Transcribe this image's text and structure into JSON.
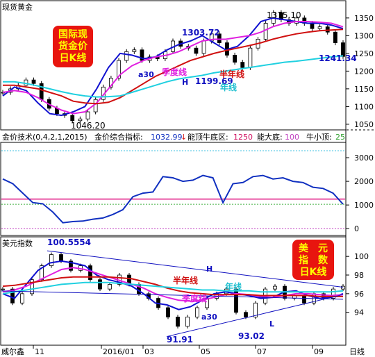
{
  "window": {
    "title": "现货黄金",
    "brand": "威尔鑫",
    "period_label": "日线"
  },
  "gold_panel": {
    "badge_lines": [
      "国际现",
      "货金价",
      "日K线"
    ],
    "badge_color": "#e8150f",
    "badge_text_color": "#ffff00",
    "annotations": {
      "high_1303": "1303.72",
      "high_1375": "1375.10",
      "low_1046": "1046.20",
      "low_1199": "1199.69",
      "last_1241": "1241.34",
      "season_line": "季度线",
      "half_year_line": "半年线",
      "year_line": "年线",
      "a30": "a30",
      "H": "H"
    }
  },
  "indicator_header": {
    "name": "金价技术(0,4,2,1,2015)",
    "index_label": "金价综合指标:",
    "index_value": "1032.99",
    "arrow": "↓",
    "top_bottom_label": "能顶牛底区:",
    "top_bottom_value": "1250",
    "big_bottom_label": "能大底:",
    "big_bottom_value": "100",
    "small_top_label": "牛小顶:",
    "small_top_value": "25"
  },
  "usd_panel": {
    "title": "美元指数",
    "badge_lines": [
      "美　元",
      "指　数",
      "日K线"
    ],
    "badge_color": "#e8150f",
    "badge_text_color": "#ffff00",
    "annotations": {
      "high_100": "100.5554",
      "low_91": "91.91",
      "low_93": "93.02",
      "season_line": "季度线",
      "half_year_line": "半年线",
      "year_line": "年线",
      "a30": "a30",
      "H": "H",
      "L": "L"
    }
  },
  "colors": {
    "candle": "#000000",
    "ma30": "#1010d0",
    "season": "#e020e0",
    "half_year": "#d01010",
    "year": "#20d0e0",
    "indicator": "#1030c0",
    "ref_line": "#e01080",
    "green_dash": "#40b040",
    "cyan_dash": "#40c0e0",
    "purple_dash": "#c040c0"
  },
  "chart_data": [
    {
      "type": "line",
      "title": "现货黄金",
      "x_ticks": [
        "11",
        "2016/01",
        "03",
        "05",
        "07",
        "09"
      ],
      "y_ticks": [
        1050,
        1100,
        1150,
        1200,
        1250,
        1300,
        1350
      ],
      "ylim": [
        1040,
        1385
      ],
      "series": [
        {
          "name": "a30",
          "values": [
            1130,
            1155,
            1145,
            1110,
            1080,
            1075,
            1085,
            1100,
            1150,
            1210,
            1250,
            1245,
            1235,
            1240,
            1260,
            1275,
            1285,
            1300,
            1280,
            1260,
            1270,
            1300,
            1340,
            1350,
            1345,
            1340,
            1335,
            1335,
            1330,
            1320
          ]
        },
        {
          "name": "季度线",
          "values": [
            1140,
            1145,
            1140,
            1125,
            1105,
            1090,
            1080,
            1085,
            1110,
            1150,
            1190,
            1215,
            1230,
            1240,
            1245,
            1255,
            1270,
            1285,
            1290,
            1290,
            1295,
            1300,
            1310,
            1325,
            1335,
            1340,
            1340,
            1338,
            1335,
            1325
          ]
        },
        {
          "name": "半年线",
          "values": [
            1160,
            1160,
            1155,
            1150,
            1140,
            1130,
            1115,
            1110,
            1108,
            1112,
            1125,
            1145,
            1165,
            1185,
            1200,
            1215,
            1230,
            1240,
            1250,
            1258,
            1265,
            1272,
            1280,
            1290,
            1298,
            1305,
            1310,
            1314,
            1316,
            1318
          ]
        },
        {
          "name": "年线",
          "values": [
            1170,
            1170,
            1165,
            1158,
            1150,
            1142,
            1135,
            1130,
            1127,
            1128,
            1130,
            1140,
            1150,
            1160,
            1170,
            1178,
            1183,
            1188,
            1195,
            1200,
            1205,
            1210,
            1215,
            1220,
            1225,
            1228,
            1232,
            1236,
            1240,
            1243
          ]
        }
      ],
      "candles_close": [
        1140,
        1150,
        1160,
        1175,
        1165,
        1120,
        1095,
        1080,
        1075,
        1060,
        1065,
        1085,
        1120,
        1155,
        1180,
        1230,
        1255,
        1260,
        1230,
        1240,
        1235,
        1255,
        1285,
        1270,
        1265,
        1250,
        1285,
        1305,
        1280,
        1245,
        1225,
        1210,
        1265,
        1290,
        1335,
        1365,
        1345,
        1335,
        1350,
        1335,
        1320,
        1325,
        1310,
        1280,
        1241.34
      ]
    },
    {
      "type": "line",
      "title": "金价技术(0,4,2,1,2015)",
      "y_ticks": [
        0,
        1000,
        2000,
        3000
      ],
      "ylim": [
        -200,
        3500
      ],
      "reference_lines": [
        1250,
        100,
        25
      ],
      "series": [
        {
          "name": "金价综合指标",
          "values": [
            2100,
            1900,
            1500,
            1100,
            1050,
            700,
            250,
            300,
            320,
            400,
            450,
            600,
            800,
            1350,
            1500,
            1550,
            2200,
            2150,
            2000,
            2050,
            2250,
            2150,
            1100,
            1900,
            1950,
            2200,
            2250,
            2100,
            2150,
            2000,
            1950,
            1750,
            1700,
            1500,
            1032.99
          ]
        }
      ]
    },
    {
      "type": "line",
      "title": "美元指数",
      "x_ticks": [
        "11",
        "2016/01",
        "03",
        "05",
        "07",
        "09"
      ],
      "y_ticks": [
        94,
        96,
        98,
        100
      ],
      "ylim": [
        90.7,
        101.8
      ],
      "series": [
        {
          "name": "a30",
          "values": [
            96,
            95.5,
            97,
            98.5,
            99.3,
            99.5,
            99.3,
            99,
            98,
            97.5,
            97.2,
            96.8,
            96,
            95,
            94.8,
            94.3,
            94.6,
            95.3,
            96,
            96.2,
            96,
            95.8,
            95.5,
            95.6,
            96.2,
            96.3,
            95.8,
            95.5,
            95.6,
            96
          ]
        },
        {
          "name": "季度线",
          "values": [
            96.2,
            96.4,
            96.8,
            97.4,
            98,
            98.6,
            98.8,
            98.6,
            98.2,
            97.8,
            97.4,
            97,
            96.6,
            96,
            95.6,
            95.3,
            95.2,
            95.3,
            95.6,
            95.9,
            96,
            95.9,
            95.7,
            95.6,
            95.8,
            96,
            96,
            95.9,
            95.8,
            95.9
          ]
        },
        {
          "name": "半年线",
          "values": [
            96.8,
            96.9,
            97.1,
            97.3,
            97.5,
            97.7,
            97.8,
            97.8,
            97.8,
            97.8,
            97.7,
            97.6,
            97.3,
            97,
            96.6,
            96.3,
            96.1,
            96,
            95.9,
            95.9,
            95.9,
            95.9,
            95.8,
            95.8,
            95.8,
            95.8,
            95.8,
            95.7,
            95.7,
            95.7
          ]
        },
        {
          "name": "年线",
          "values": [
            96,
            96.2,
            96.4,
            96.6,
            96.8,
            97,
            97.1,
            97.2,
            97.2,
            97.2,
            97.1,
            97,
            96.9,
            96.8,
            96.7,
            96.6,
            96.5,
            96.4,
            96.4,
            96.3,
            96.3,
            96.3,
            96.2,
            96.2,
            96.2,
            96.2,
            96.2,
            96.2,
            96.2,
            96.3
          ]
        }
      ],
      "candles_close": [
        96.5,
        95,
        96,
        97.5,
        99,
        100.2,
        99.5,
        98.5,
        99,
        97.5,
        96.5,
        97,
        98,
        97,
        96,
        95.5,
        94.5,
        93.5,
        92.5,
        93.5,
        94.5,
        95.5,
        96,
        96.5,
        94,
        93.5,
        95,
        96.5,
        96.8,
        95.5,
        95.8,
        95,
        96,
        95.5,
        96.5,
        96.8
      ]
    }
  ]
}
